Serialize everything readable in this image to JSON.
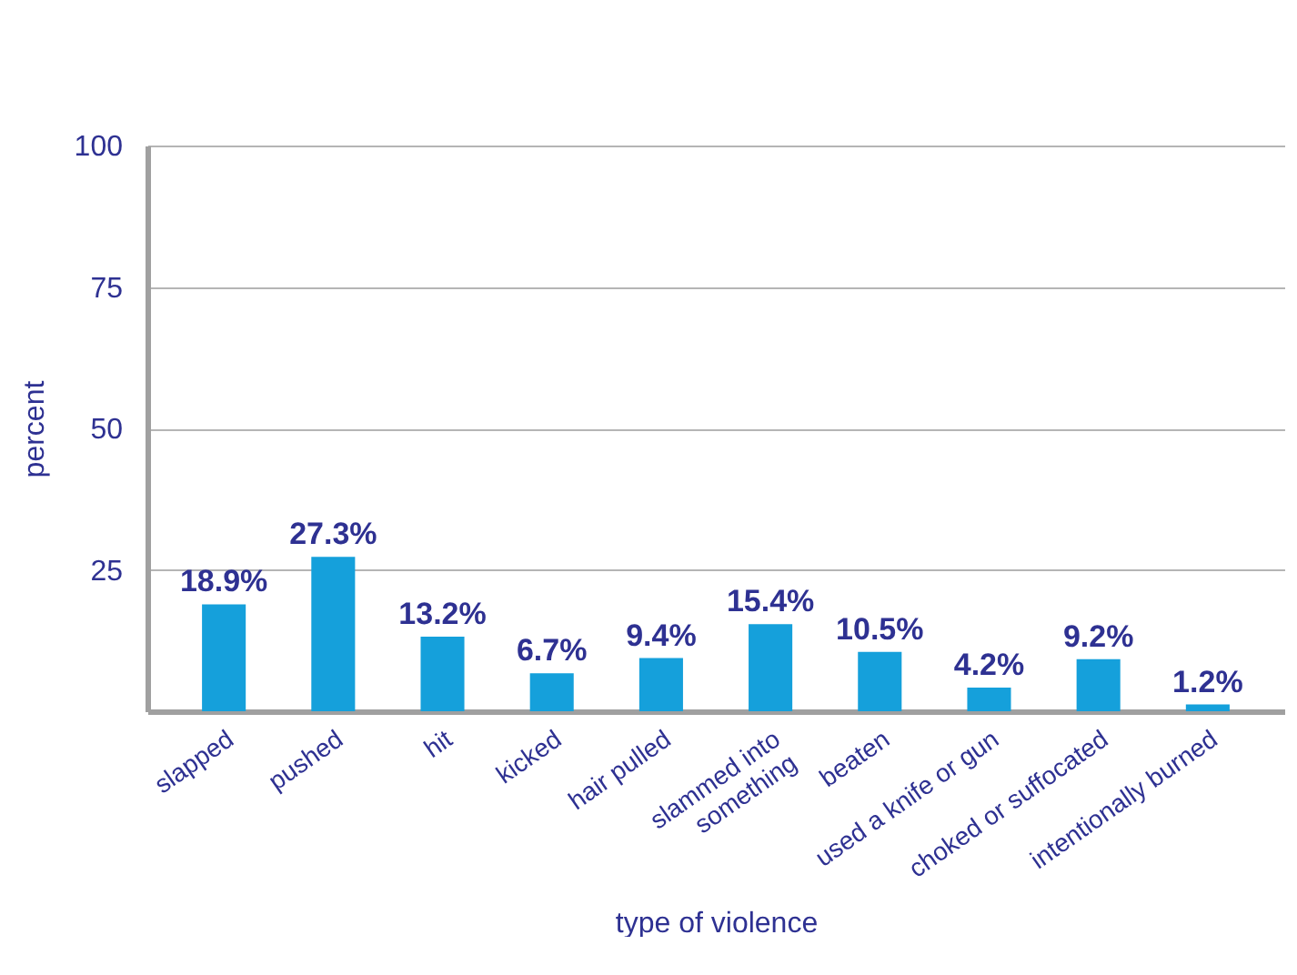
{
  "chart_data": {
    "type": "bar",
    "xlabel": "type of violence",
    "ylabel": "percent",
    "categories": [
      "slapped",
      "pushed",
      "hit",
      "kicked",
      "hair pulled",
      "slammed into\nsomething",
      "beaten",
      "used a knife or gun",
      "choked or suffocated",
      "intentionally burned"
    ],
    "values": [
      18.9,
      27.3,
      13.2,
      6.7,
      9.4,
      15.4,
      10.5,
      4.2,
      9.2,
      1.2
    ],
    "value_labels": [
      "18.9%",
      "27.3%",
      "13.2%",
      "6.7%",
      "9.4%",
      "15.4%",
      "10.5%",
      "4.2%",
      "9.2%",
      "1.2%"
    ],
    "color": "#15a0db",
    "ylim": [
      0,
      100
    ],
    "yticks": [
      {
        "value": 0,
        "label": null
      },
      25,
      50,
      75,
      100
    ],
    "grid": "y"
  }
}
